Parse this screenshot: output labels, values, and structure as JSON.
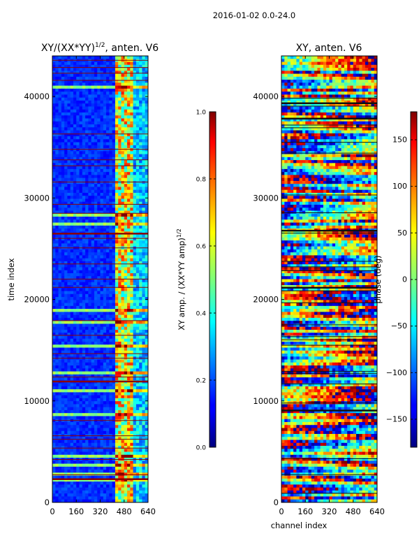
{
  "figure": {
    "suptitle": "2016-01-02 0.0-24.0"
  },
  "chart_data": [
    {
      "type": "heatmap",
      "title": "XY/(XX*YY)^{1/2}, anten. V6",
      "title_main": "XY/(XX*YY)",
      "title_sup": "1/2",
      "title_tail": ", anten. V6",
      "xlabel": "",
      "ylabel": "time index",
      "xlim": [
        0,
        640
      ],
      "ylim": [
        0,
        44000
      ],
      "xticks": [
        0,
        160,
        320,
        480,
        640
      ],
      "yticks": [
        0,
        10000,
        20000,
        30000,
        40000
      ],
      "colormap": "jet",
      "colorbar": {
        "label": "XY amp. / (XX*YY amp)^{1/2}",
        "label_main": "XY amp. / (XX*YY amp)",
        "label_sup": "1/2",
        "range": [
          0.0,
          1.0
        ],
        "ticks": [
          0.0,
          0.2,
          0.4,
          0.6,
          0.8,
          1.0
        ],
        "tick_labels": [
          "0.0",
          "0.2",
          "0.4",
          "0.6",
          "0.8",
          "1.0"
        ]
      }
    },
    {
      "type": "heatmap",
      "title": "XY, anten. V6",
      "xlabel": "channel index",
      "ylabel": "",
      "xlim": [
        0,
        640
      ],
      "ylim": [
        0,
        44000
      ],
      "xticks": [
        0,
        160,
        320,
        480,
        640
      ],
      "yticks": [
        0,
        10000,
        20000,
        30000,
        40000
      ],
      "colormap": "jet",
      "colorbar": {
        "label": "phase (deg)",
        "range": [
          -180,
          180
        ],
        "ticks": [
          -150,
          -100,
          -50,
          0,
          50,
          100,
          150
        ],
        "tick_labels": [
          "−150",
          "−100",
          "−50",
          "0",
          "50",
          "100",
          "150"
        ]
      }
    }
  ]
}
